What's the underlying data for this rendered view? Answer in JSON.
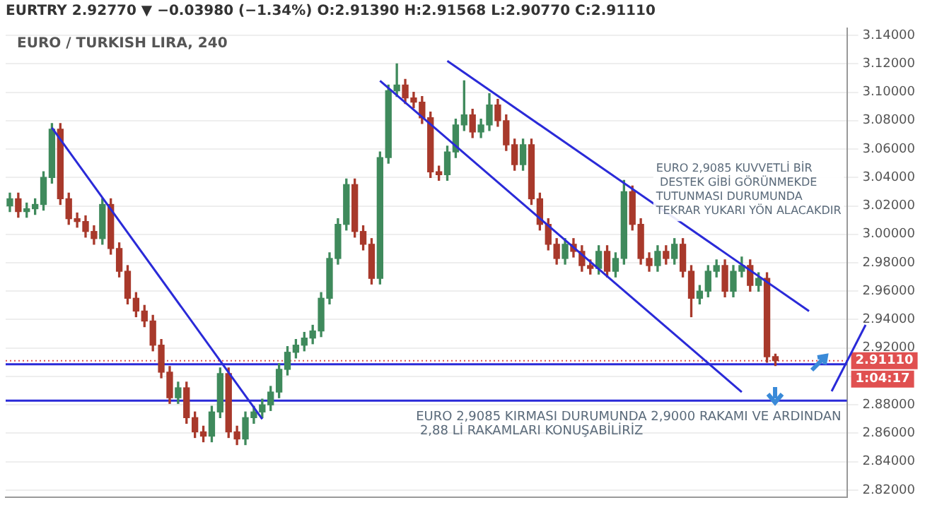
{
  "chart_data": {
    "type": "candlestick",
    "title": "EURTRY 2.92770 ▼ −0.03980 (−1.34%) O:2.91390 H:2.91568 L:2.90770 C:2.91110",
    "subtitle": "EURO / TURKISH LIRA, 240",
    "categories": [
      null,
      null,
      null,
      null,
      null,
      null,
      null,
      null,
      null,
      null,
      null,
      null,
      null,
      null,
      null,
      null,
      null,
      null,
      null,
      null,
      null,
      null,
      null,
      null,
      null,
      null,
      null,
      null,
      null,
      null,
      null,
      null,
      null,
      null,
      null,
      null,
      null,
      null,
      null,
      null,
      null,
      null,
      null,
      null,
      null,
      null,
      null,
      null,
      null,
      null,
      null,
      null,
      null,
      null,
      null,
      null,
      null,
      null,
      null,
      null,
      null,
      null,
      null,
      null,
      null,
      null,
      null,
      null,
      null,
      null,
      null,
      null,
      null,
      null,
      null,
      null,
      null,
      null,
      null,
      null,
      null,
      null,
      null,
      null,
      null,
      null,
      null,
      null,
      null,
      null,
      null,
      null,
      null,
      null,
      null,
      null,
      null,
      null,
      null,
      null
    ],
    "ohlc": [
      [
        3.02,
        3.029,
        3.016,
        3.025
      ],
      [
        3.025,
        3.029,
        3.012,
        3.016
      ],
      [
        3.016,
        3.022,
        3.012,
        3.018
      ],
      [
        3.018,
        3.025,
        3.014,
        3.021
      ],
      [
        3.021,
        3.044,
        3.017,
        3.04
      ],
      [
        3.04,
        3.078,
        3.036,
        3.074
      ],
      [
        3.074,
        3.078,
        3.021,
        3.025
      ],
      [
        3.025,
        3.029,
        3.007,
        3.011
      ],
      [
        3.011,
        3.015,
        3.005,
        3.009
      ],
      [
        3.009,
        3.013,
        2.998,
        3.002
      ],
      [
        3.002,
        3.006,
        2.993,
        2.997
      ],
      [
        2.997,
        3.025,
        2.993,
        3.021
      ],
      [
        3.021,
        3.025,
        2.986,
        2.99
      ],
      [
        2.99,
        2.994,
        2.97,
        2.974
      ],
      [
        2.974,
        2.978,
        2.951,
        2.955
      ],
      [
        2.955,
        2.959,
        2.942,
        2.946
      ],
      [
        2.946,
        2.95,
        2.935,
        2.939
      ],
      [
        2.939,
        2.943,
        2.918,
        2.922
      ],
      [
        2.922,
        2.926,
        2.899,
        2.903
      ],
      [
        2.903,
        2.907,
        2.881,
        2.885
      ],
      [
        2.885,
        2.896,
        2.881,
        2.892
      ],
      [
        2.892,
        2.896,
        2.867,
        2.871
      ],
      [
        2.871,
        2.875,
        2.857,
        2.861
      ],
      [
        2.861,
        2.865,
        2.854,
        2.858
      ],
      [
        2.858,
        2.879,
        2.854,
        2.875
      ],
      [
        2.875,
        2.906,
        2.871,
        2.902
      ],
      [
        2.902,
        2.906,
        2.857,
        2.861
      ],
      [
        2.861,
        2.865,
        2.852,
        2.856
      ],
      [
        2.856,
        2.875,
        2.852,
        2.871
      ],
      [
        2.871,
        2.879,
        2.867,
        2.875
      ],
      [
        2.875,
        2.884,
        2.871,
        2.88
      ],
      [
        2.88,
        2.893,
        2.876,
        2.889
      ],
      [
        2.889,
        2.909,
        2.885,
        2.905
      ],
      [
        2.905,
        2.921,
        2.901,
        2.917
      ],
      [
        2.917,
        2.926,
        2.913,
        2.922
      ],
      [
        2.922,
        2.931,
        2.918,
        2.927
      ],
      [
        2.927,
        2.936,
        2.923,
        2.932
      ],
      [
        2.932,
        2.959,
        2.928,
        2.955
      ],
      [
        2.955,
        2.987,
        2.951,
        2.983
      ],
      [
        2.983,
        3.011,
        2.979,
        3.007
      ],
      [
        3.007,
        3.039,
        3.003,
        3.035
      ],
      [
        3.035,
        3.039,
        2.998,
        3.002
      ],
      [
        3.002,
        3.006,
        2.989,
        2.993
      ],
      [
        2.993,
        2.997,
        2.965,
        2.969
      ],
      [
        2.969,
        3.058,
        2.965,
        3.054
      ],
      [
        3.054,
        3.105,
        3.05,
        3.101
      ],
      [
        3.101,
        3.12,
        3.097,
        3.105
      ],
      [
        3.105,
        3.109,
        3.092,
        3.096
      ],
      [
        3.096,
        3.1,
        3.089,
        3.093
      ],
      [
        3.093,
        3.097,
        3.078,
        3.082
      ],
      [
        3.082,
        3.086,
        3.04,
        3.044
      ],
      [
        3.044,
        3.048,
        3.038,
        3.042
      ],
      [
        3.042,
        3.062,
        3.038,
        3.058
      ],
      [
        3.058,
        3.081,
        3.054,
        3.077
      ],
      [
        3.077,
        3.108,
        3.073,
        3.084
      ],
      [
        3.084,
        3.088,
        3.068,
        3.072
      ],
      [
        3.072,
        3.081,
        3.068,
        3.077
      ],
      [
        3.077,
        3.099,
        3.073,
        3.091
      ],
      [
        3.091,
        3.095,
        3.076,
        3.08
      ],
      [
        3.08,
        3.084,
        3.059,
        3.063
      ],
      [
        3.063,
        3.067,
        3.045,
        3.049
      ],
      [
        3.049,
        3.067,
        3.045,
        3.063
      ],
      [
        3.063,
        3.067,
        3.021,
        3.025
      ],
      [
        3.025,
        3.029,
        3.003,
        3.007
      ],
      [
        3.007,
        3.011,
        2.989,
        2.993
      ],
      [
        2.993,
        2.997,
        2.979,
        2.983
      ],
      [
        2.983,
        2.997,
        2.979,
        2.993
      ],
      [
        2.993,
        2.997,
        2.984,
        2.988
      ],
      [
        2.988,
        2.992,
        2.974,
        2.978
      ],
      [
        2.978,
        2.982,
        2.972,
        2.976
      ],
      [
        2.976,
        2.992,
        2.972,
        2.988
      ],
      [
        2.988,
        2.992,
        2.97,
        2.974
      ],
      [
        2.974,
        2.987,
        2.97,
        2.983
      ],
      [
        2.983,
        3.038,
        2.979,
        3.03
      ],
      [
        3.03,
        3.034,
        3.003,
        3.007
      ],
      [
        3.007,
        3.011,
        2.979,
        2.983
      ],
      [
        2.983,
        2.987,
        2.974,
        2.978
      ],
      [
        2.978,
        2.992,
        2.974,
        2.988
      ],
      [
        2.988,
        2.992,
        2.979,
        2.983
      ],
      [
        2.983,
        2.997,
        2.979,
        2.993
      ],
      [
        2.993,
        2.997,
        2.97,
        2.974
      ],
      [
        2.974,
        2.978,
        2.942,
        2.955
      ],
      [
        2.955,
        2.964,
        2.951,
        2.96
      ],
      [
        2.96,
        2.978,
        2.956,
        2.974
      ],
      [
        2.974,
        2.982,
        2.97,
        2.978
      ],
      [
        2.978,
        2.982,
        2.956,
        2.96
      ],
      [
        2.96,
        2.978,
        2.956,
        2.974
      ],
      [
        2.974,
        2.984,
        2.97,
        2.978
      ],
      [
        2.978,
        2.982,
        2.96,
        2.964
      ],
      [
        2.964,
        2.973,
        2.96,
        2.969
      ],
      [
        2.969,
        2.973,
        2.91,
        2.9139
      ],
      [
        2.9139,
        2.91568,
        2.9077,
        2.9111
      ],
      null,
      null,
      null,
      null,
      null,
      null,
      null,
      null
    ],
    "ylim": [
      2.815,
      3.145
    ],
    "yticks": [
      {
        "value": 2.82,
        "label": "2.82000"
      },
      {
        "value": 2.84,
        "label": "2.84000"
      },
      {
        "value": 2.86,
        "label": "2.86000"
      },
      {
        "value": 2.88,
        "label": "2.88000"
      },
      {
        "value": 2.9,
        "label": null
      },
      {
        "value": 2.92,
        "label": "2.92000"
      },
      {
        "value": 2.94,
        "label": "2.94000"
      },
      {
        "value": 2.96,
        "label": "2.96000"
      },
      {
        "value": 2.98,
        "label": "2.98000"
      },
      {
        "value": 3.0,
        "label": "3.00000"
      },
      {
        "value": 3.02,
        "label": "3.02000"
      },
      {
        "value": 3.04,
        "label": "3.04000"
      },
      {
        "value": 3.06,
        "label": "3.06000"
      },
      {
        "value": 3.08,
        "label": "3.08000"
      },
      {
        "value": 3.1,
        "label": "3.10000"
      },
      {
        "value": 3.12,
        "label": "3.12000"
      },
      {
        "value": 3.14,
        "label": "3.14000"
      }
    ],
    "ref_lines": [
      {
        "axis": "y",
        "value": 2.9111,
        "label": "2.91110",
        "color": "#e05050",
        "line_style": "dotted"
      },
      {
        "axis": "y",
        "value": 2.9085,
        "color": "#2a2ad8",
        "line_style": "solid"
      },
      {
        "axis": "y",
        "value": 2.883,
        "color": "#2a2ad8",
        "line_style": "solid"
      }
    ],
    "annotations": [
      "EURO 2,9085 KUVVETLİ BİR\n DESTEK GİBİ GÖRÜNMEKDE\nTUTUNMASI DURUMUNDA\nTEKRAR YUKARI YÖN ALACAKDIR",
      "EURO 2,9085 KIRMASI DURUMUNDA 2,9000 RAKAMI VE ARDINDAN\n 2,88 Lİ RAKAMLARI KONUŞABİLİRİZ",
      "1:04:17"
    ],
    "series": [
      {
        "type": "line",
        "color": "#2a2ad8",
        "values": [
          null,
          null,
          null,
          null,
          null,
          3.075,
          null,
          null,
          null,
          null,
          null,
          null,
          null,
          null,
          null,
          null,
          null,
          null,
          null,
          null,
          null,
          null,
          null,
          null,
          null,
          null,
          null,
          null,
          null,
          null,
          2.87,
          null,
          null,
          null,
          null,
          null,
          null,
          null,
          null,
          null,
          null,
          null,
          null,
          null,
          null,
          null,
          null,
          null,
          null,
          null,
          null,
          null,
          null,
          null,
          null,
          null,
          null,
          null,
          null,
          null,
          null,
          null,
          null,
          null,
          null,
          null,
          null,
          null,
          null,
          null,
          null,
          null,
          null,
          null,
          null,
          null,
          null,
          null,
          null,
          null,
          null,
          null,
          null,
          null,
          null,
          null,
          null,
          null,
          null,
          null,
          null,
          null,
          null,
          null,
          null,
          null,
          null,
          null,
          null,
          null
        ]
      },
      {
        "type": "line",
        "color": "#2a2ad8",
        "values": [
          null,
          null,
          null,
          null,
          null,
          null,
          null,
          null,
          null,
          null,
          null,
          null,
          null,
          null,
          null,
          null,
          null,
          null,
          null,
          null,
          null,
          null,
          null,
          null,
          null,
          null,
          null,
          null,
          null,
          null,
          null,
          null,
          null,
          null,
          null,
          null,
          null,
          null,
          null,
          null,
          null,
          null,
          null,
          null,
          3.108,
          null,
          null,
          null,
          null,
          null,
          null,
          null,
          null,
          null,
          null,
          null,
          null,
          null,
          null,
          null,
          null,
          null,
          null,
          null,
          null,
          null,
          null,
          null,
          null,
          null,
          null,
          null,
          null,
          null,
          null,
          null,
          null,
          null,
          null,
          null,
          null,
          null,
          null,
          null,
          null,
          null,
          null,
          2.889,
          null,
          null,
          null,
          null,
          null,
          null,
          null,
          null,
          null,
          null,
          null,
          null
        ]
      },
      {
        "type": "line",
        "color": "#2a2ad8",
        "values": [
          null,
          null,
          null,
          null,
          null,
          null,
          null,
          null,
          null,
          null,
          null,
          null,
          null,
          null,
          null,
          null,
          null,
          null,
          null,
          null,
          null,
          null,
          null,
          null,
          null,
          null,
          null,
          null,
          null,
          null,
          null,
          null,
          null,
          null,
          null,
          null,
          null,
          null,
          null,
          null,
          null,
          null,
          null,
          null,
          null,
          null,
          null,
          null,
          null,
          null,
          null,
          null,
          3.122,
          null,
          null,
          null,
          null,
          null,
          null,
          null,
          null,
          null,
          null,
          null,
          null,
          null,
          null,
          null,
          null,
          null,
          null,
          null,
          null,
          null,
          null,
          null,
          null,
          null,
          null,
          null,
          null,
          null,
          null,
          null,
          null,
          null,
          null,
          null,
          null,
          null,
          null,
          null,
          null,
          null,
          null,
          2.946,
          null,
          null,
          null,
          null
        ]
      }
    ],
    "grid": "y",
    "legend": false,
    "tick_labels": "y"
  }
}
